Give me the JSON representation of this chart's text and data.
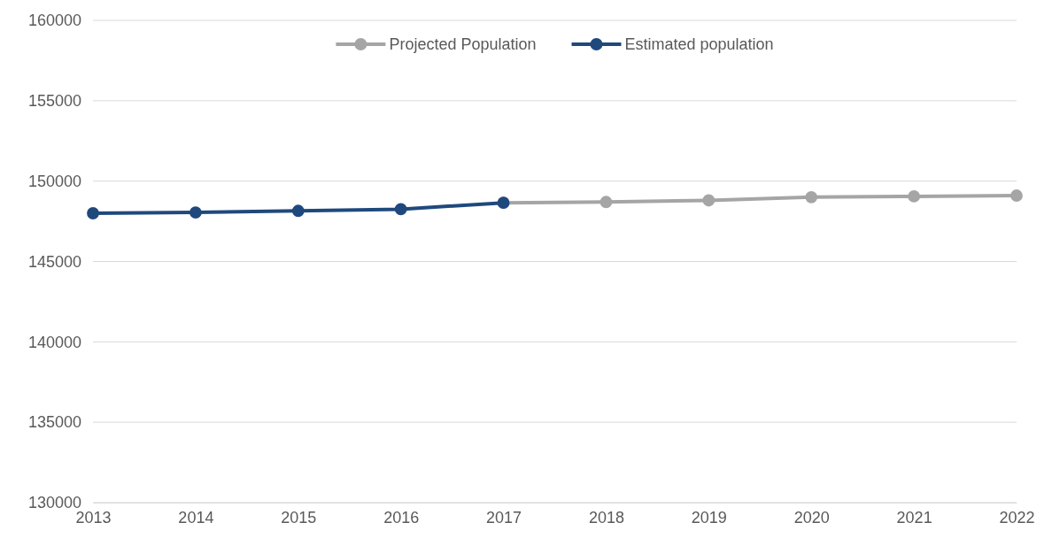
{
  "chart_data": {
    "type": "line",
    "categories": [
      "2013",
      "2014",
      "2015",
      "2016",
      "2017",
      "2018",
      "2019",
      "2020",
      "2021",
      "2022"
    ],
    "series": [
      {
        "name": "Projected Population",
        "color": "#a5a5a5",
        "values": [
          null,
          null,
          null,
          null,
          148650,
          148700,
          148800,
          149000,
          149050,
          149100
        ]
      },
      {
        "name": "Estimated population",
        "color": "#1f497d",
        "values": [
          148000,
          148050,
          148150,
          148250,
          148650,
          null,
          null,
          null,
          null,
          null
        ]
      }
    ],
    "ylim": [
      130000,
      160000
    ],
    "yticks": [
      130000,
      135000,
      140000,
      145000,
      150000,
      155000,
      160000
    ],
    "grid": "y",
    "legend": "top",
    "marker": "circle",
    "line_style": "solid"
  }
}
